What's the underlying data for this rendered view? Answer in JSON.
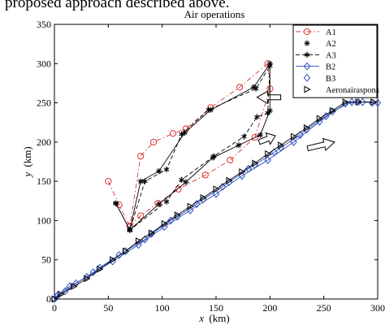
{
  "page_text": {
    "caption_fragment": "proposed approach described above."
  },
  "chart_data": {
    "type": "line",
    "title": "Air operations",
    "xlabel_var": "x",
    "xlabel_unit": "(km)",
    "ylabel_var": "y",
    "ylabel_unit": "(km)",
    "xlim": [
      0,
      300
    ],
    "ylim": [
      0,
      350
    ],
    "xticks": [
      0,
      50,
      100,
      150,
      200,
      250,
      300
    ],
    "yticks": [
      0,
      50,
      100,
      150,
      200,
      250,
      300,
      350
    ],
    "grid": false,
    "legend_position": "top-right",
    "series": [
      {
        "name": "A1",
        "color": "#e03030",
        "dash": "6,3,1.5,3",
        "marker": "circle",
        "x": [
          50,
          60,
          70,
          80,
          92,
          110,
          122,
          145,
          172,
          198,
          200,
          186,
          163,
          140,
          115,
          96,
          80,
          70
        ],
        "y": [
          150,
          120,
          93,
          182,
          200,
          211,
          217,
          244,
          270,
          300,
          268,
          206,
          177,
          158,
          140,
          122,
          106,
          93
        ]
      },
      {
        "name": "A2",
        "color": "#000000",
        "dash": "",
        "marker": "star",
        "x": [
          57,
          70,
          80,
          97,
          121,
          145,
          185,
          200,
          200,
          191,
          171,
          147,
          122,
          97,
          70
        ],
        "y": [
          122,
          88,
          150,
          163,
          212,
          241,
          270,
          300,
          240,
          209,
          196,
          180,
          149,
          121,
          88
        ]
      },
      {
        "name": "A3",
        "color": "#000000",
        "dash": "5,3",
        "marker": "asterisk",
        "x": [
          57,
          70,
          84,
          104,
          118,
          143,
          187,
          200,
          198,
          188,
          176,
          148,
          118,
          104,
          70
        ],
        "y": [
          122,
          88,
          150,
          165,
          210,
          241,
          268,
          297,
          237,
          232,
          207,
          182,
          152,
          124,
          88
        ]
      },
      {
        "name": "B2",
        "color": "#3050c0",
        "dash": "",
        "marker": "diamond",
        "x": [
          0,
          3,
          14,
          30,
          54,
          78,
          102,
          126,
          150,
          174,
          198,
          222,
          246,
          270,
          286,
          295,
          300
        ],
        "y": [
          0,
          5,
          16,
          28,
          48,
          69,
          92,
          113,
          134,
          157,
          177,
          200,
          226,
          249,
          251,
          250,
          250
        ]
      },
      {
        "name": "B3",
        "color": "#3050c0",
        "dash": "",
        "marker": "diamond-open",
        "x": [
          2,
          10,
          20,
          36,
          42,
          60,
          66,
          84,
          90,
          108,
          114,
          132,
          138,
          156,
          162,
          180,
          186,
          204,
          210,
          228,
          234,
          252,
          258,
          276,
          282
        ],
        "y": [
          3,
          10,
          20,
          34,
          40,
          56,
          61,
          76,
          83,
          100,
          105,
          121,
          127,
          143,
          149,
          166,
          171,
          187,
          193,
          209,
          216,
          233,
          239,
          251,
          251
        ]
      },
      {
        "name": "Aeronairaspons",
        "color": "#000000",
        "dash": "",
        "marker": "triangle-right",
        "x": [
          0,
          6,
          18,
          30,
          42,
          54,
          66,
          78,
          90,
          102,
          114,
          126,
          138,
          150,
          162,
          174,
          186,
          198,
          210,
          222,
          234,
          246,
          258,
          270,
          282,
          296
        ],
        "y": [
          0,
          6,
          16,
          26,
          38,
          50,
          61,
          74,
          84,
          96,
          107,
          118,
          129,
          140,
          151,
          162,
          173,
          185,
          196,
          207,
          218,
          230,
          240,
          251,
          251,
          251
        ]
      }
    ],
    "direction_arrows": [
      {
        "from": [
          188,
          257
        ],
        "to": [
          210,
          257
        ],
        "pointing": "left"
      },
      {
        "from": [
          190,
          200
        ],
        "to": [
          205,
          208
        ],
        "pointing": "up-right"
      },
      {
        "from": [
          235,
          192
        ],
        "to": [
          260,
          200
        ],
        "pointing": "right"
      }
    ]
  }
}
